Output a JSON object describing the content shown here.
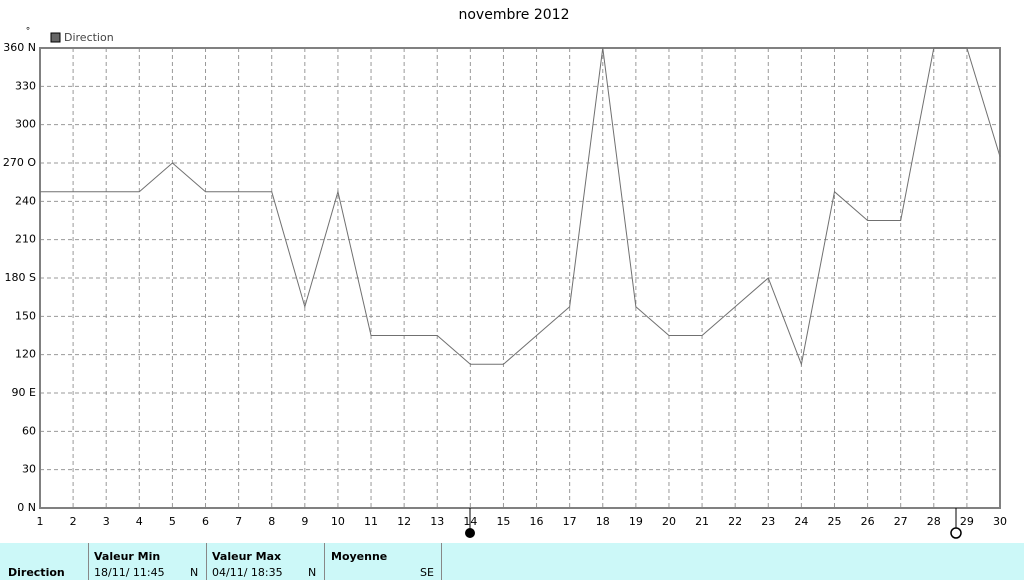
{
  "chart_data": {
    "type": "line",
    "title": "novembre 2012",
    "y_unit": "°",
    "x": [
      1,
      2,
      3,
      4,
      5,
      6,
      7,
      8,
      9,
      10,
      11,
      12,
      13,
      14,
      15,
      16,
      17,
      18,
      19,
      20,
      21,
      22,
      23,
      24,
      25,
      26,
      27,
      28,
      29,
      30
    ],
    "series": [
      {
        "name": "Direction",
        "color": "#707070",
        "values": [
          247.5,
          247.5,
          247.5,
          247.5,
          270,
          247.5,
          247.5,
          247.5,
          157.5,
          247.5,
          135,
          135,
          135,
          112.5,
          112.5,
          135,
          157.5,
          360,
          157.5,
          135,
          135,
          157.5,
          180,
          112.5,
          247.5,
          225,
          225,
          360,
          360,
          275
        ]
      }
    ],
    "xlim": [
      1,
      30
    ],
    "xticks": [
      1,
      2,
      3,
      4,
      5,
      6,
      7,
      8,
      9,
      10,
      11,
      12,
      13,
      14,
      15,
      16,
      17,
      18,
      19,
      20,
      21,
      22,
      23,
      24,
      25,
      26,
      27,
      28,
      29,
      30
    ],
    "ylim": [
      0,
      360
    ],
    "yticks": [
      {
        "value": 0,
        "label": "0   N"
      },
      30,
      60,
      {
        "value": 90,
        "label": "90  E"
      },
      120,
      150,
      {
        "value": 180,
        "label": "180 S"
      },
      210,
      240,
      {
        "value": 270,
        "label": "270 O"
      },
      300,
      330,
      {
        "value": 360,
        "label": "360 N"
      }
    ],
    "grid": true
  },
  "table": {
    "row_label": "Direction",
    "columns": [
      {
        "header": "Valeur Min",
        "date": "18/11/ 11:45",
        "value": "N"
      },
      {
        "header": "Valeur Max",
        "date": "04/11/ 18:35",
        "value": "N"
      },
      {
        "header": "Moyenne",
        "value": "SE"
      }
    ]
  }
}
